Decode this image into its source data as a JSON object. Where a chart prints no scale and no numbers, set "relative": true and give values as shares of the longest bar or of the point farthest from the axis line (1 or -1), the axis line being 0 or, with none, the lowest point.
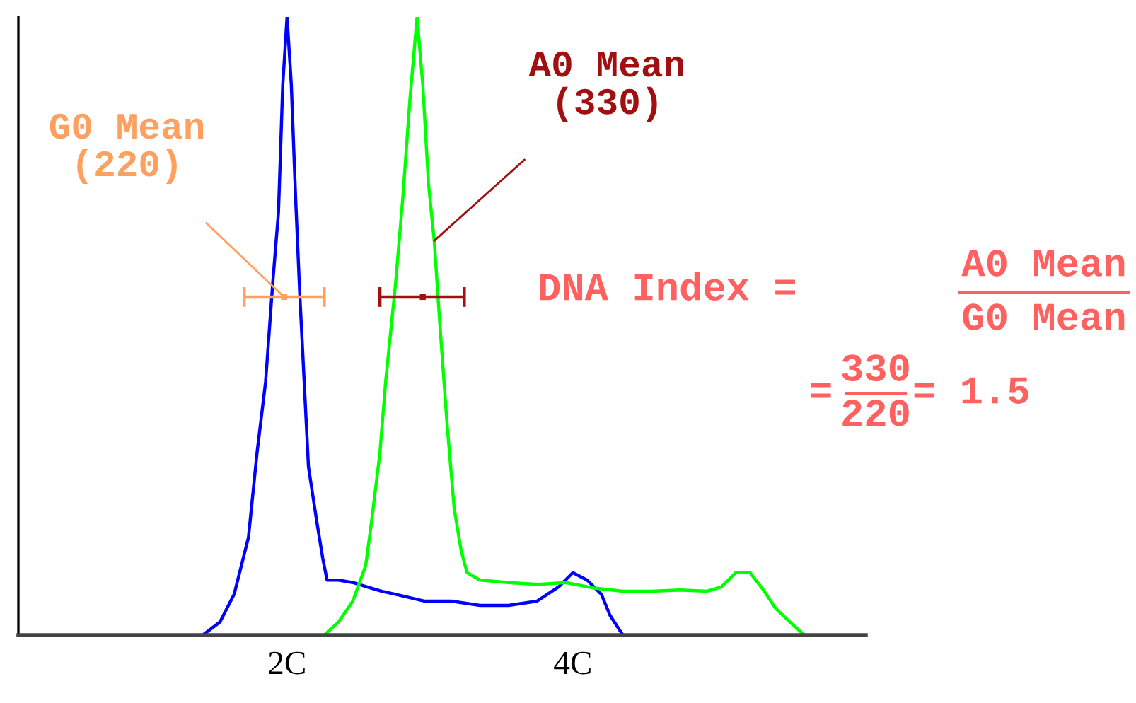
{
  "chart_data": {
    "type": "line",
    "relative": true,
    "xlim": [
      0.12,
      6.05
    ],
    "xticks": [
      {
        "value": 2,
        "label": "2C"
      },
      {
        "value": 4,
        "label": "4C"
      }
    ],
    "series": [
      {
        "color": "#0000ff",
        "x": [
          1.41,
          1.53,
          1.63,
          1.73,
          1.79,
          1.85,
          1.9,
          1.94,
          1.97,
          2,
          2.03,
          2.06,
          2.09,
          2.12,
          2.15,
          2.21,
          2.25,
          2.28,
          2.36,
          2.46,
          2.56,
          2.66,
          2.76,
          2.96,
          3.15,
          3.35,
          3.55,
          3.75,
          3.9,
          4,
          4.1,
          4.2,
          4.26,
          4.35
        ],
        "values": [
          0,
          0.021,
          0.066,
          0.158,
          0.295,
          0.41,
          0.57,
          0.684,
          0.89,
          1,
          0.89,
          0.707,
          0.547,
          0.41,
          0.272,
          0.181,
          0.124,
          0.089,
          0.089,
          0.085,
          0.078,
          0.071,
          0.066,
          0.055,
          0.055,
          0.048,
          0.048,
          0.055,
          0.078,
          0.101,
          0.089,
          0.066,
          0.032,
          0
        ]
      },
      {
        "color": "#00ff00",
        "x": [
          2.26,
          2.36,
          2.46,
          2.55,
          2.59,
          2.65,
          2.69,
          2.76,
          2.81,
          2.86,
          2.91,
          2.95,
          2.99,
          3.03,
          3.07,
          3.12,
          3.17,
          3.22,
          3.26,
          3.35,
          3.55,
          3.75,
          3.95,
          4.15,
          4.35,
          4.55,
          4.75,
          4.94,
          5.04,
          5.14,
          5.24,
          5.34,
          5.42,
          5.52,
          5.62
        ],
        "values": [
          0,
          0.021,
          0.055,
          0.112,
          0.181,
          0.295,
          0.41,
          0.57,
          0.707,
          0.867,
          1,
          0.89,
          0.73,
          0.638,
          0.501,
          0.341,
          0.204,
          0.135,
          0.101,
          0.089,
          0.085,
          0.082,
          0.085,
          0.076,
          0.071,
          0.071,
          0.073,
          0.071,
          0.078,
          0.101,
          0.101,
          0.071,
          0.043,
          0.021,
          0
        ]
      },
      {
        "type": "scatter",
        "marker": "square",
        "color": "#ffa060",
        "x": [
          1.98
        ],
        "values": [
          0.547
        ],
        "xerrors": [
          [
            1.7,
            2.26
          ]
        ]
      },
      {
        "type": "scatter",
        "marker": "square",
        "color": "#a01010",
        "x": [
          2.95
        ],
        "values": [
          0.547
        ],
        "xerrors": [
          [
            2.65,
            3.24
          ]
        ]
      }
    ],
    "annotations": [
      {
        "text": "G0 Mean\n(220)",
        "x": 1.98,
        "y": 0.547
      },
      {
        "text": "A0 Mean\n(330)",
        "x": 3.03,
        "y": 0.638
      },
      "DNA Index =",
      "A0 Mean",
      "G0 Mean",
      "=",
      "330",
      "220",
      "= 1.5"
    ]
  }
}
